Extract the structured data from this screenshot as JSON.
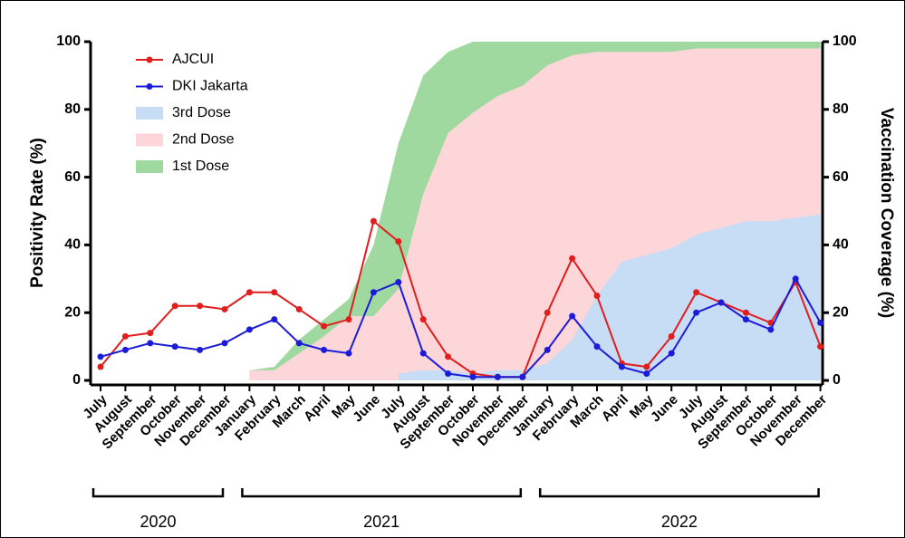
{
  "chart_data": {
    "type": "line",
    "y_label": "Positivity Rate (%)",
    "y2_label": "Vaccination Coverage (%)",
    "categories": [
      "July",
      "August",
      "September",
      "October",
      "November",
      "December",
      "January",
      "February",
      "March",
      "April",
      "May",
      "June",
      "July",
      "August",
      "September",
      "October",
      "November",
      "December",
      "January",
      "February",
      "March",
      "April",
      "May",
      "June",
      "July",
      "August",
      "September",
      "October",
      "November",
      "December"
    ],
    "groups": [
      "2020",
      "2021",
      "2022"
    ],
    "ylim": [
      0,
      100
    ],
    "yticks": [
      0,
      20,
      40,
      60,
      80,
      100
    ],
    "y2lim": [
      0,
      100
    ],
    "y2ticks": [
      0,
      20,
      40,
      60,
      80,
      100
    ],
    "legend": "upper left",
    "series": [
      {
        "name": "AJCUI",
        "type": "line",
        "color": "#e01e1e",
        "values": [
          4,
          13,
          14,
          22,
          22,
          21,
          26,
          26,
          21,
          16,
          18,
          47,
          41,
          18,
          7,
          2,
          1,
          1,
          20,
          36,
          25,
          5,
          4,
          13,
          26,
          23,
          20,
          17,
          29,
          10
        ]
      },
      {
        "name": "DKI Jakarta",
        "type": "line",
        "color": "#1c1cd8",
        "values": [
          7,
          9,
          11,
          10,
          9,
          11,
          15,
          18,
          11,
          9,
          8,
          26,
          29,
          8,
          2,
          1,
          1,
          1,
          9,
          19,
          10,
          4,
          2,
          8,
          20,
          23,
          18,
          15,
          30,
          17
        ]
      },
      {
        "name": "3rd Dose",
        "type": "area",
        "axis": "y2",
        "color": "#c7dcf5",
        "values": [
          null,
          null,
          null,
          null,
          null,
          null,
          null,
          null,
          null,
          null,
          null,
          null,
          2,
          3,
          3,
          2,
          3,
          3,
          5,
          12,
          25,
          35,
          37,
          39,
          43,
          45,
          47,
          47,
          48,
          49
        ]
      },
      {
        "name": "2nd Dose",
        "type": "area",
        "axis": "y2",
        "color": "#fcd6d9",
        "values": [
          null,
          null,
          null,
          null,
          null,
          null,
          3,
          3,
          8,
          13,
          19,
          19,
          27,
          55,
          73,
          79,
          84,
          87,
          93,
          96,
          97,
          97,
          97,
          97,
          98,
          98,
          98,
          98,
          98,
          98
        ]
      },
      {
        "name": "1st Dose",
        "type": "area",
        "axis": "y2",
        "color": "#a0d9a0",
        "values": [
          null,
          null,
          null,
          null,
          null,
          null,
          3,
          4,
          12,
          18,
          24,
          40,
          70,
          90,
          97,
          100,
          100,
          100,
          100,
          100,
          100,
          100,
          100,
          100,
          100,
          100,
          100,
          100,
          100,
          100
        ]
      }
    ]
  }
}
